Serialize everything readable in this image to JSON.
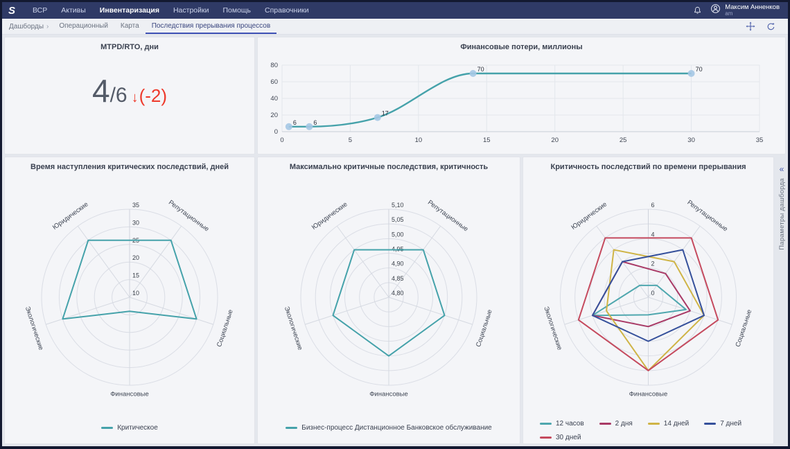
{
  "topnav": {
    "logo_text": "S",
    "items": [
      {
        "label": "ВСР",
        "active": false
      },
      {
        "label": "Активы",
        "active": false
      },
      {
        "label": "Инвентаризация",
        "active": true
      },
      {
        "label": "Настройки",
        "active": false
      },
      {
        "label": "Помощь",
        "active": false
      },
      {
        "label": "Справочники",
        "active": false
      }
    ],
    "user": {
      "name": "Максим Анненков",
      "role": "am"
    }
  },
  "breadcrumbs": {
    "root": "Дашборды",
    "separator": "›",
    "tabs": [
      {
        "label": "Операционный",
        "active": false
      },
      {
        "label": "Карта",
        "active": false
      },
      {
        "label": "Последствия прерывания процессов",
        "active": true
      }
    ]
  },
  "right_rail": {
    "collapse_glyph": "«",
    "label": "Параметры дашборда"
  },
  "icons": {
    "notification": "bell-icon",
    "user": "avatar-icon",
    "fit_view": "move-icon",
    "refresh": "refresh-icon",
    "collapse_rail": "double-chevron-left-icon"
  },
  "kpi": {
    "title": "MTPD/RTO, дни",
    "value": "4",
    "denominator": "/6",
    "arrow": "↓",
    "delta": "(-2)"
  },
  "theme": {
    "navbar_bg": "#2f3a66",
    "breadcrumb_accent": "#3f51b5",
    "panel_bg": "#f4f5f8",
    "page_bg": "#e4e7ed",
    "teal": "#45a2aa",
    "kpi_red": "#ee3a2c"
  },
  "chart_data": [
    {
      "id": "losses",
      "type": "line",
      "title": "Финансовые потери, миллионы",
      "x": [
        0.5,
        2,
        7,
        14,
        30
      ],
      "y": [
        6,
        6,
        17,
        70,
        70
      ],
      "point_labels": [
        "6",
        "6",
        "17",
        "70",
        "70"
      ],
      "xlim": [
        0,
        35
      ],
      "xticks": [
        0,
        5,
        10,
        15,
        20,
        25,
        30,
        35
      ],
      "ylim": [
        0,
        80
      ],
      "yticks": [
        0,
        20,
        40,
        60,
        80
      ],
      "grid": true,
      "line_shape": "spline",
      "line_color": "#45a2aa",
      "marker_color": "#a5c8e4"
    },
    {
      "id": "radar_onset",
      "type": "radar",
      "title": "Время наступления критических последствий, дней",
      "categories": [
        "Юридические",
        "Экологические",
        "Финансовые",
        "Социальные",
        "Репутационные"
      ],
      "rmin": 10,
      "rmax": 35,
      "rticks": [
        10,
        15,
        20,
        25,
        30,
        35
      ],
      "rtick_labels": [
        "10",
        "15",
        "20",
        "25",
        "30",
        "35"
      ],
      "rings": [
        15,
        20,
        25,
        30,
        35
      ],
      "legend_position": "bottom-center",
      "series": [
        {
          "name": "Критическое",
          "color": "#45a2aa",
          "values": [
            30,
            30,
            14,
            30,
            30
          ]
        }
      ]
    },
    {
      "id": "radar_max",
      "type": "radar",
      "title": "Максимально критичные последствия, критичность",
      "categories": [
        "Юридические",
        "Экологические",
        "Финансовые",
        "Социальные",
        "Репутационные"
      ],
      "rmin": 4.8,
      "rmax": 5.1,
      "rticks": [
        4.8,
        4.85,
        4.9,
        4.95,
        5.0,
        5.05,
        5.1
      ],
      "rtick_labels": [
        "4,80",
        "4,85",
        "4,90",
        "4,95",
        "5,00",
        "5,05",
        "5,10"
      ],
      "rings": [
        4.85,
        4.9,
        4.95,
        5.0,
        5.05,
        5.1
      ],
      "legend_position": "bottom-center",
      "series": [
        {
          "name": "Бизнес-процесс Дистанционное Банковское обслуживание",
          "color": "#45a2aa",
          "values": [
            5,
            5,
            5,
            5,
            5
          ]
        }
      ]
    },
    {
      "id": "radar_time",
      "type": "radar",
      "title": "Критичность последствий по времени прерывания",
      "categories": [
        "Юридические",
        "Экологические",
        "Финансовые",
        "Социальные",
        "Репутационные"
      ],
      "rmin": 0,
      "rmax": 6,
      "rticks": [
        0,
        2,
        4,
        6
      ],
      "rtick_labels": [
        "0",
        "2",
        "4",
        "6"
      ],
      "rings": [
        1,
        2,
        3,
        4,
        5,
        6
      ],
      "legend_position": "bottom-left",
      "series": [
        {
          "name": "12 часов",
          "color": "#4fa7ae",
          "values": [
            1,
            4,
            1.2,
            2.7,
            1
          ]
        },
        {
          "name": "2 дня",
          "color": "#a93a66",
          "values": [
            3,
            4,
            2,
            3,
            2
          ]
        },
        {
          "name": "14 дней",
          "color": "#cfb446",
          "values": [
            4,
            3,
            5,
            4,
            3
          ]
        },
        {
          "name": "7 дней",
          "color": "#35509b",
          "values": [
            3,
            4,
            3,
            4,
            4
          ]
        },
        {
          "name": "30 дней",
          "color": "#c54a5e",
          "values": [
            5,
            5,
            5,
            5,
            5
          ]
        }
      ]
    }
  ]
}
